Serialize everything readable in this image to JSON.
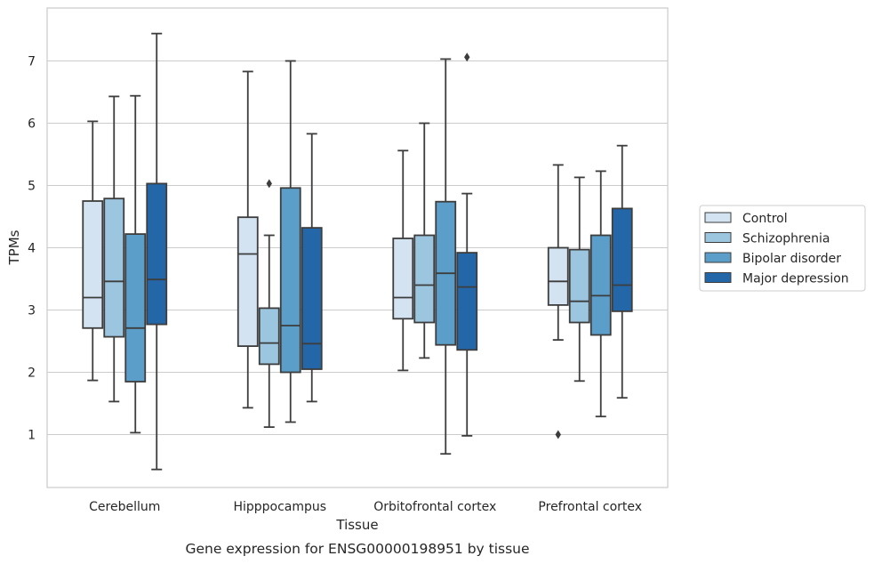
{
  "chart_data": {
    "type": "box",
    "xlabel": "Tissue",
    "ylabel": "TPMs",
    "caption": "Gene expression for ENSG00000198951 by tissue",
    "categories": [
      "Cerebellum",
      "Hipppocampus",
      "Orbitofrontal cortex",
      "Prefrontal cortex"
    ],
    "ylim": [
      0.15,
      7.85
    ],
    "yticks": [
      1,
      2,
      3,
      4,
      5,
      6,
      7
    ],
    "grid": true,
    "legend_position": "right",
    "series": [
      {
        "name": "Control",
        "color": "#d4e3f1",
        "boxes": [
          {
            "min": 1.87,
            "q1": 2.71,
            "median": 3.2,
            "q3": 4.75,
            "max": 6.03,
            "outliers": []
          },
          {
            "min": 1.43,
            "q1": 2.42,
            "median": 3.9,
            "q3": 4.49,
            "max": 6.83,
            "outliers": []
          },
          {
            "min": 2.03,
            "q1": 2.86,
            "median": 3.2,
            "q3": 4.15,
            "max": 5.56,
            "outliers": []
          },
          {
            "min": 2.52,
            "q1": 3.08,
            "median": 3.46,
            "q3": 4.0,
            "max": 5.33,
            "outliers": [
              1.0
            ]
          }
        ]
      },
      {
        "name": "Schizophrenia",
        "color": "#9cc5df",
        "boxes": [
          {
            "min": 1.53,
            "q1": 2.57,
            "median": 3.46,
            "q3": 4.79,
            "max": 6.43,
            "outliers": []
          },
          {
            "min": 1.12,
            "q1": 2.13,
            "median": 2.47,
            "q3": 3.03,
            "max": 4.2,
            "outliers": [
              5.03
            ]
          },
          {
            "min": 2.23,
            "q1": 2.8,
            "median": 3.4,
            "q3": 4.2,
            "max": 6.0,
            "outliers": []
          },
          {
            "min": 1.86,
            "q1": 2.8,
            "median": 3.14,
            "q3": 3.97,
            "max": 5.13,
            "outliers": []
          }
        ]
      },
      {
        "name": "Bipolar disorder",
        "color": "#5a9ec9",
        "boxes": [
          {
            "min": 1.03,
            "q1": 1.85,
            "median": 2.71,
            "q3": 4.22,
            "max": 6.44,
            "outliers": []
          },
          {
            "min": 1.2,
            "q1": 2.0,
            "median": 2.75,
            "q3": 4.96,
            "max": 7.0,
            "outliers": []
          },
          {
            "min": 0.69,
            "q1": 2.44,
            "median": 3.59,
            "q3": 4.74,
            "max": 7.03,
            "outliers": []
          },
          {
            "min": 1.29,
            "q1": 2.6,
            "median": 3.23,
            "q3": 4.2,
            "max": 5.23,
            "outliers": []
          }
        ]
      },
      {
        "name": "Major depression",
        "color": "#2467a9",
        "boxes": [
          {
            "min": 0.44,
            "q1": 2.77,
            "median": 3.49,
            "q3": 5.03,
            "max": 7.44,
            "outliers": []
          },
          {
            "min": 1.53,
            "q1": 2.05,
            "median": 2.46,
            "q3": 4.32,
            "max": 5.83,
            "outliers": []
          },
          {
            "min": 0.98,
            "q1": 2.36,
            "median": 3.37,
            "q3": 3.92,
            "max": 4.87,
            "outliers": [
              7.06
            ]
          },
          {
            "min": 1.59,
            "q1": 2.98,
            "median": 3.4,
            "q3": 4.63,
            "max": 5.64,
            "outliers": []
          }
        ]
      }
    ]
  }
}
